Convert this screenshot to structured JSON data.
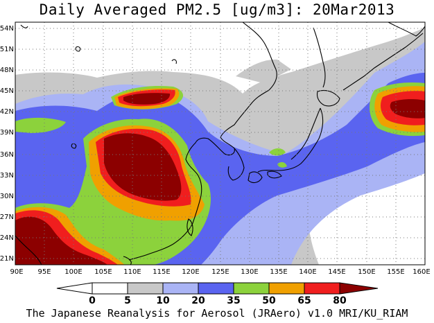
{
  "title": "Daily Averaged PM2.5 [ug/m3]: 20Mar2013",
  "credit": "The Japanese Reanalysis for Aerosol (JRAero) v1.0 MRI/KU_RIAM",
  "lat_labels": [
    "54N",
    "51N",
    "48N",
    "45N",
    "42N",
    "39N",
    "36N",
    "33N",
    "30N",
    "27N",
    "24N",
    "21N"
  ],
  "lon_labels": [
    "90E",
    "95E",
    "100E",
    "105E",
    "110E",
    "115E",
    "120E",
    "125E",
    "130E",
    "135E",
    "140E",
    "145E",
    "150E",
    "155E",
    "160E"
  ],
  "colorbar": {
    "levels": [
      "0",
      "5",
      "10",
      "20",
      "35",
      "50",
      "65",
      "80"
    ],
    "colors": [
      "#ffffff",
      "#c8c8c8",
      "#aab4f5",
      "#5a64f0",
      "#8cd23c",
      "#f0a000",
      "#f01e1e",
      "#8c0000"
    ]
  }
}
